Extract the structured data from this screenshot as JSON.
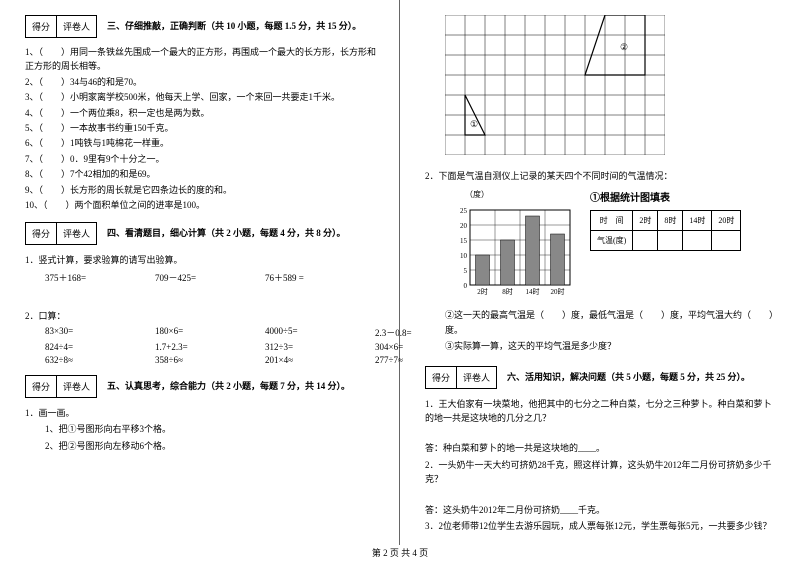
{
  "scorebox": {
    "score": "得分",
    "grader": "评卷人"
  },
  "section3": {
    "title": "三、仔细推敲，正确判断（共 10 小题，每题 1.5 分，共 15 分）。",
    "items": [
      "1、（　　）用同一条铁丝先围成一个最大的正方形，再围成一个最大的长方形，长方形和正方形的周长相等。",
      "2、（　　）34与46的和是70。",
      "3、（　　）小明家离学校500米，他每天上学、回家，一个来回一共要走1千米。",
      "4、（　　）一个两位乘8，积一定也是两为数。",
      "5、（　　）一本故事书约重150千克。",
      "6、（　　）1吨铁与1吨棉花一样重。",
      "7、（　　）0．9里有9个十分之一。",
      "8、（　　）7个42相加的和是69。",
      "9、（　　）长方形的周长就是它四条边长的度的和。",
      "10、（　　）两个面积单位之间的进率是100。"
    ]
  },
  "section4": {
    "title": "四、看清题目，细心计算（共 2 小题，每题 4 分，共 8 分）。",
    "q1_title": "1．竖式计算，要求验算的请写出验算。",
    "q1_items": [
      "375＋168=",
      "709－425=",
      "76＋589 ="
    ],
    "q2_title": "2．口算：",
    "q2_rows": [
      [
        "83×30=",
        "180×6=",
        "4000÷5=",
        "2.3－0.8="
      ],
      [
        "824÷4=",
        "1.7+2.3=",
        "312÷3=",
        "304×6="
      ],
      [
        "632÷8≈",
        "358÷6≈",
        "201×4≈",
        "277÷7≈"
      ]
    ]
  },
  "section5": {
    "title": "五、认真思考，综合能力（共 2 小题，每题 7 分，共 14 分）。",
    "q1_title": "1．画一画。",
    "items": [
      "1、把①号图形向右平移3个格。",
      "2、把②号图形向左移动6个格。"
    ]
  },
  "right": {
    "q2": "2．下面是气温自测仪上记录的某天四个不同时间的气温情况：",
    "chart_title": "①根据统计图填表",
    "ylabel": "（度）",
    "yticks": [
      "25",
      "20",
      "15",
      "10",
      "5",
      "0"
    ],
    "xticks": [
      "2时",
      "8时",
      "14时",
      "20时"
    ],
    "table": {
      "h1": "时　间",
      "h2": "2时",
      "h3": "8时",
      "h4": "14时",
      "h5": "20时",
      "r1": "气温(度)"
    },
    "q_c2": "②这一天的最高气温是（　　）度，最低气温是（　　）度，平均气温大约（　　）度。",
    "q_c3": "③实际算一算，这天的平均气温是多少度？"
  },
  "section6": {
    "title": "六、活用知识，解决问题（共 5 小题，每题 5 分，共 25 分）。",
    "q1": "1．王大伯家有一块菜地，他把其中的七分之二种白菜，七分之三种萝卜。种白菜和萝卜的地一共是这块地的几分之几？",
    "a1": "答：种白菜和萝卜的地一共是这块地的____。",
    "q2": "2．一头奶牛一天大约可挤奶28千克，照这样计算，这头奶牛2012年二月份可挤奶多少千克？",
    "a2": "答：这头奶牛2012年二月份可挤奶____千克。",
    "q3": "3．2位老师带12位学生去游乐园玩，成人票每张12元，学生票每张5元，一共要多少钱？"
  },
  "footer": "第 2 页 共 4 页",
  "chart": {
    "bars": [
      10,
      15,
      23,
      17
    ],
    "ymax": 25,
    "bar_color": "#888888",
    "grid_color": "#000000",
    "bg": "#ffffff"
  },
  "grid_shapes": {
    "shape1": {
      "label": "①"
    },
    "shape2": {
      "label": "②"
    }
  }
}
